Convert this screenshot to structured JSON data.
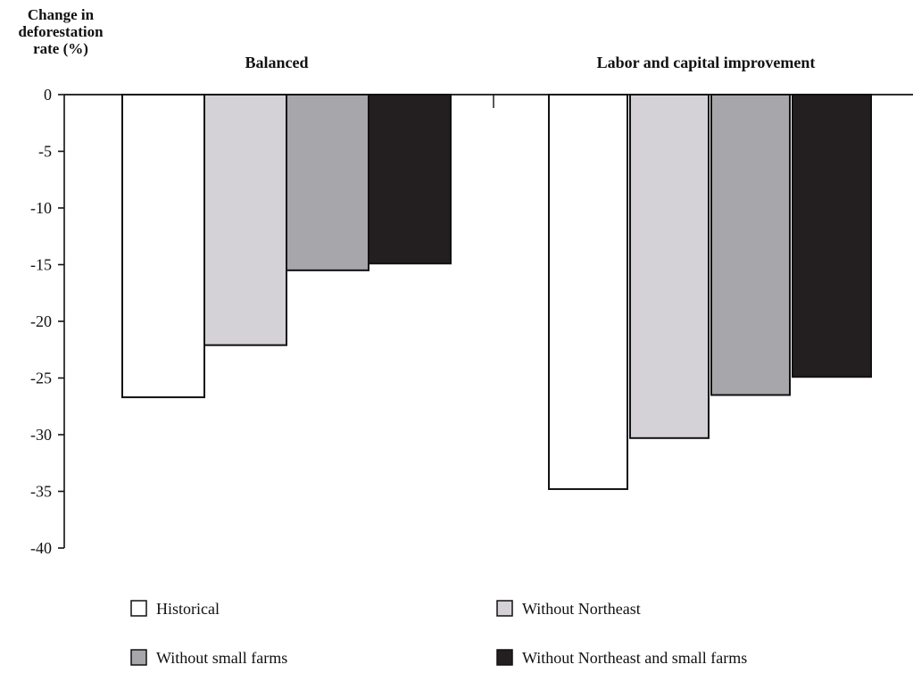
{
  "chart_data": {
    "type": "bar",
    "ylabel_lines": [
      "Change in",
      "deforestation",
      "rate (%)"
    ],
    "ylim": [
      -40,
      0
    ],
    "y_ticks": [
      0,
      -5,
      -10,
      -15,
      -20,
      -25,
      -30,
      -35,
      -40
    ],
    "grid": false,
    "legend_position": "bottom",
    "categories": [
      "Balanced",
      "Labor and capital improvement"
    ],
    "series": [
      {
        "name": "Historical",
        "color": "#ffffff",
        "values": [
          -26.7,
          -34.8
        ]
      },
      {
        "name": "Without Northeast",
        "color": "#d4d2d6",
        "values": [
          -22.1,
          -30.3
        ]
      },
      {
        "name": "Without small farms",
        "color": "#a7a6aa",
        "values": [
          -15.5,
          -26.5
        ]
      },
      {
        "name": "Without Northeast and small farms",
        "color": "#231f20",
        "values": [
          -14.9,
          -24.9
        ]
      }
    ]
  }
}
